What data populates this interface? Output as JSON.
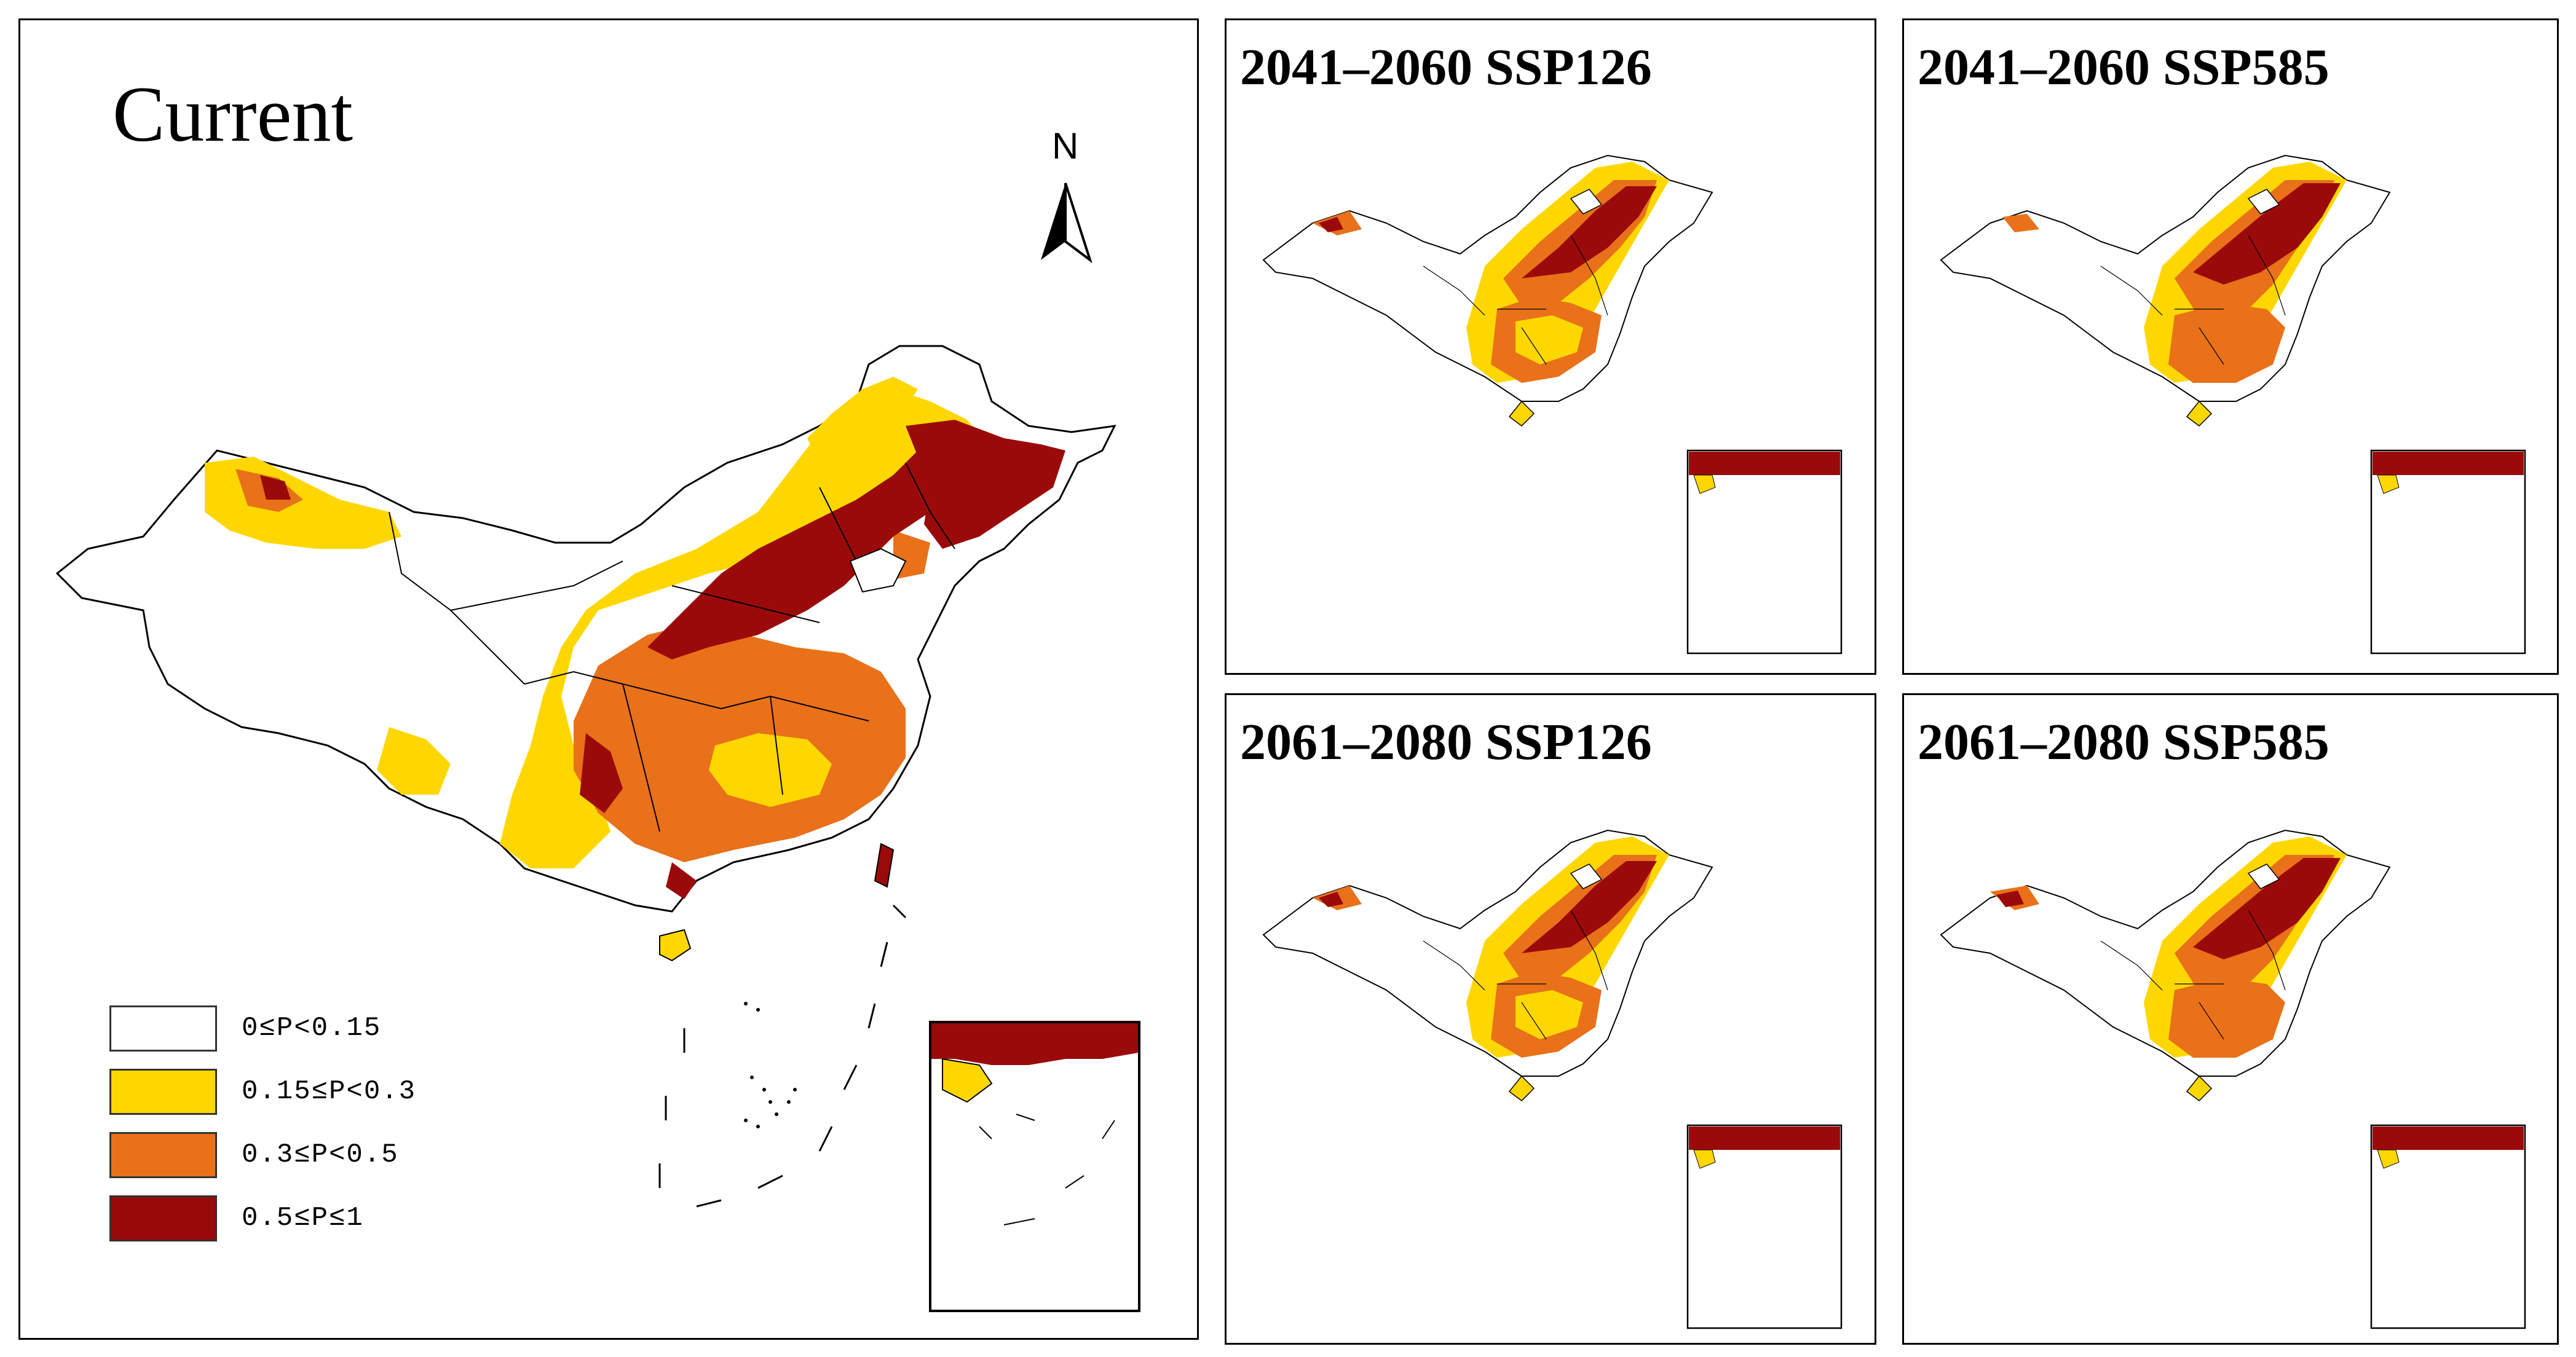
{
  "figure": {
    "panels": [
      {
        "id": "current",
        "title": "Current"
      },
      {
        "id": "p1",
        "title": "2041–2060 SSP126"
      },
      {
        "id": "p2",
        "title": "2041–2060 SSP585"
      },
      {
        "id": "p3",
        "title": "2061–2080 SSP126"
      },
      {
        "id": "p4",
        "title": "2061–2080 SSP585"
      }
    ],
    "north_arrow": {
      "label": "N"
    },
    "legend": [
      {
        "label": "0≤P<0.15",
        "color": "#ffffff"
      },
      {
        "label": "0.15≤P<0.3",
        "color": "#ffd700"
      },
      {
        "label": "0.3≤P<0.5",
        "color": "#e8711a"
      },
      {
        "label": "0.5≤P≤1",
        "color": "#9b0a0a"
      }
    ]
  }
}
